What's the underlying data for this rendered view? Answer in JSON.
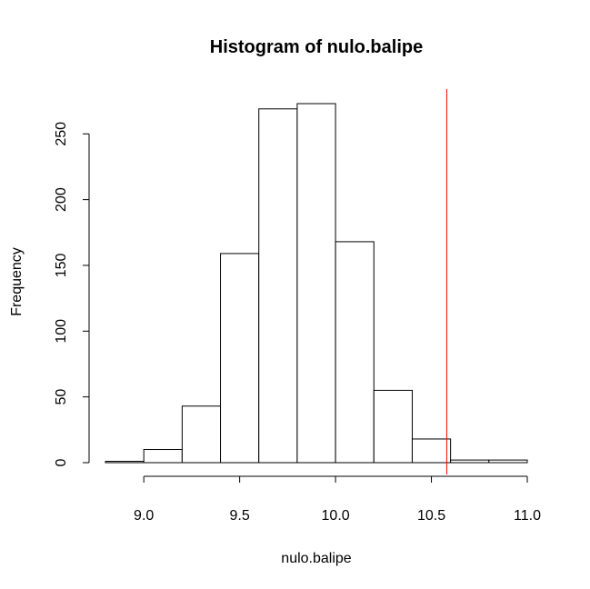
{
  "chart_data": {
    "type": "bar",
    "title": "Histogram of nulo.balipe",
    "xlabel": "nulo.balipe",
    "ylabel": "Frequency",
    "bin_edges": [
      8.8,
      9.0,
      9.2,
      9.4,
      9.6,
      9.8,
      10.0,
      10.2,
      10.4,
      10.6,
      10.8,
      11.0
    ],
    "values": [
      1,
      10,
      43,
      159,
      269,
      273,
      168,
      55,
      18,
      2,
      2
    ],
    "xlim": [
      8.8,
      11.0
    ],
    "ylim": [
      0,
      273
    ],
    "x_ticks": [
      9.0,
      9.5,
      10.0,
      10.5,
      11.0
    ],
    "x_tick_labels": [
      "9.0",
      "9.5",
      "10.0",
      "10.5",
      "11.0"
    ],
    "y_ticks": [
      0,
      50,
      100,
      150,
      200,
      250
    ],
    "y_tick_labels": [
      "0",
      "50",
      "100",
      "150",
      "200",
      "250"
    ],
    "reference_line": {
      "x": 10.58,
      "color": "#ff0000"
    },
    "bar_fill": "#ffffff",
    "bar_stroke": "#000000",
    "grid": false,
    "legend": "none"
  }
}
